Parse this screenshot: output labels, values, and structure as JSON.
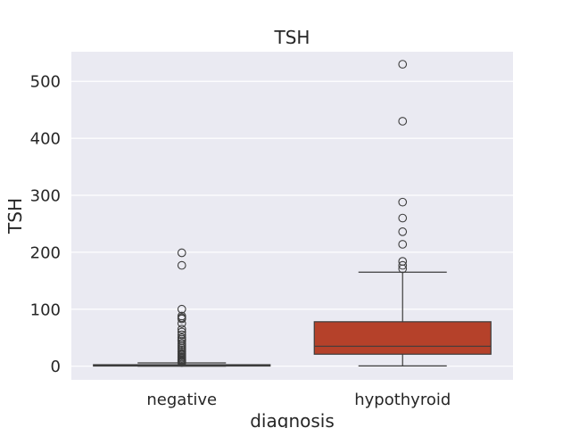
{
  "chart_data": {
    "type": "box",
    "title": "TSH",
    "xlabel": "diagnosis",
    "ylabel": "TSH",
    "ylim": [
      -24,
      552
    ],
    "yticks": [
      0,
      100,
      200,
      300,
      400,
      500
    ],
    "ytick_labels": [
      "0",
      "100",
      "200",
      "300",
      "400",
      "500"
    ],
    "grid": true,
    "colors": {
      "background": "#eaeaf2",
      "grid": "#ffffff",
      "edge": "#3d3d3d",
      "negative": "#3c3c88",
      "hypothyroid": "#b5412a"
    },
    "categories": [
      "negative",
      "hypothyroid"
    ],
    "boxes": [
      {
        "category": "negative",
        "whisker_low": 0.005,
        "q1": 0.5,
        "median": 1.4,
        "q3": 2.6,
        "whisker_high": 5.7,
        "outliers": [
          199,
          177,
          100,
          88,
          85,
          83,
          75,
          65,
          60,
          55,
          50,
          47,
          44,
          40,
          37,
          34,
          31,
          28,
          25,
          22,
          20,
          18,
          16,
          14,
          12,
          11,
          10,
          9,
          8,
          7,
          6.5
        ]
      },
      {
        "category": "hypothyroid",
        "whisker_low": 0.5,
        "q1": 21,
        "median": 35,
        "q3": 78,
        "whisker_high": 165,
        "outliers": [
          530,
          430,
          288,
          260,
          236,
          214,
          184,
          177,
          171
        ]
      }
    ]
  }
}
